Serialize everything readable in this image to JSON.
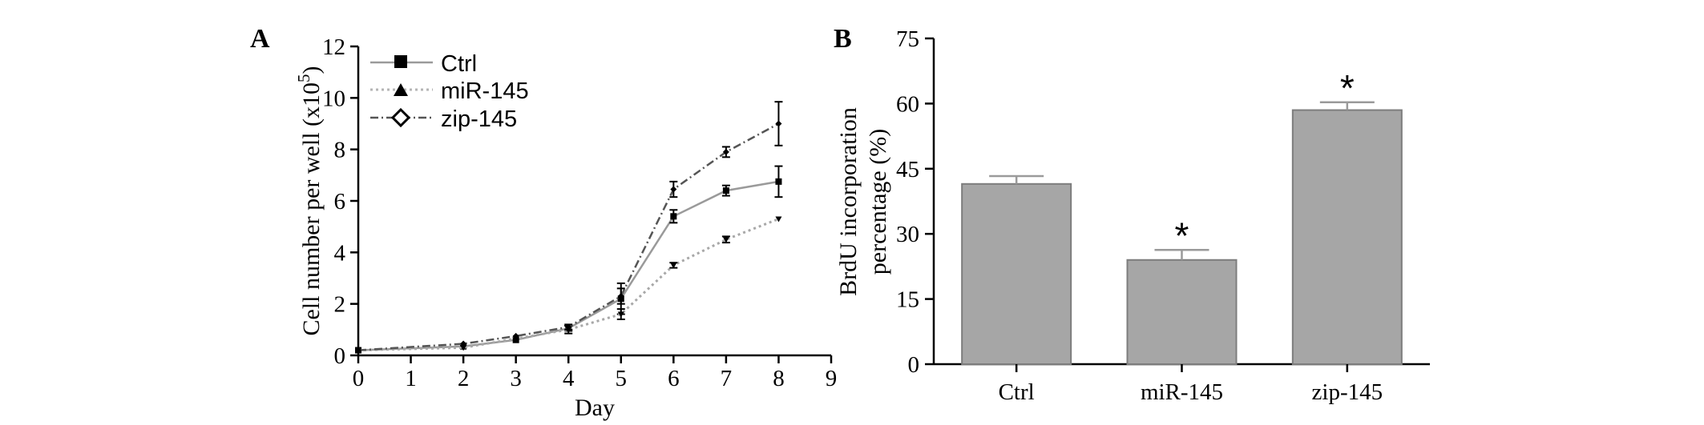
{
  "chart_data": [
    {
      "panel": "A",
      "type": "line",
      "xlabel": "Day",
      "ylabel": "Cell number per well (x10",
      "ylabel_exp": "5",
      "ylabel_close": ")",
      "xlim": [
        0,
        9
      ],
      "ylim": [
        0,
        12
      ],
      "xticks": [
        0,
        1,
        2,
        3,
        4,
        5,
        6,
        7,
        8,
        9
      ],
      "yticks": [
        0,
        2,
        4,
        6,
        8,
        10,
        12
      ],
      "x": [
        0,
        2,
        3,
        4,
        5,
        6,
        7,
        8
      ],
      "legend_position": "top-left",
      "grid": false,
      "series": [
        {
          "name": "Ctrl",
          "values": [
            0.2,
            0.35,
            0.6,
            1.05,
            2.2,
            5.4,
            6.4,
            6.75
          ],
          "errors": [
            0.05,
            0.05,
            0.05,
            0.1,
            0.6,
            0.25,
            0.2,
            0.6
          ],
          "color": "#9a9a9a",
          "dash": "solid",
          "marker": "square"
        },
        {
          "name": "miR-145",
          "values": [
            0.2,
            0.3,
            0.65,
            1.0,
            1.6,
            3.5,
            4.5,
            5.3
          ],
          "errors": [
            0.05,
            0.05,
            0.05,
            0.15,
            0.2,
            0.1,
            0.12,
            0.05
          ],
          "color": "#a8a8a8",
          "dash": "dotted",
          "marker": "triangle-down"
        },
        {
          "name": "zip-145",
          "values": [
            0.2,
            0.45,
            0.75,
            1.1,
            2.3,
            6.45,
            7.9,
            9.0
          ],
          "errors": [
            0.05,
            0.05,
            0.05,
            0.1,
            0.3,
            0.3,
            0.2,
            0.85
          ],
          "color": "#555555",
          "dash": "dashdot",
          "marker": "diamond"
        }
      ]
    },
    {
      "panel": "B",
      "type": "bar",
      "ylabel_line1": "BrdU incorporation",
      "ylabel_line2": "percentage (%)",
      "categories": [
        "Ctrl",
        "miR-145",
        "zip-145"
      ],
      "values": [
        41.5,
        24,
        58.5
      ],
      "errors": [
        1.8,
        2.3,
        1.8
      ],
      "significance": [
        "",
        "*",
        "*"
      ],
      "ylim": [
        0,
        75
      ],
      "yticks": [
        0,
        15,
        30,
        45,
        60,
        75
      ],
      "bar_color": "#a6a6a6",
      "grid": false
    }
  ]
}
